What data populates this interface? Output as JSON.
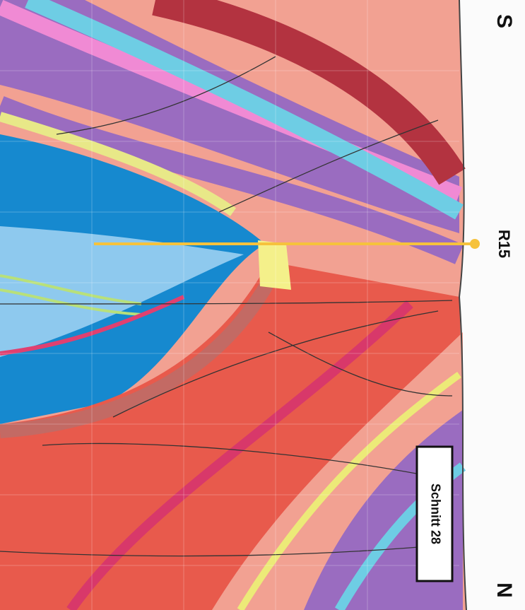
{
  "labels": {
    "south": "S",
    "north": "N",
    "marker": "R15",
    "section": "Schnitt 28"
  }
}
